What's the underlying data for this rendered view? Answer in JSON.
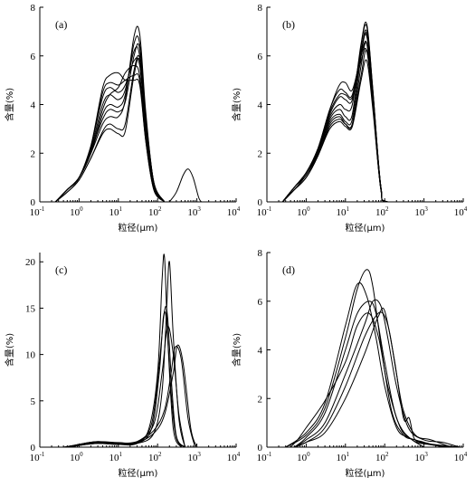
{
  "chart_data": [
    {
      "panel": "(a)",
      "type": "line",
      "xscale": "log",
      "xlim": [
        0.1,
        10000
      ],
      "ylim": [
        0,
        8
      ],
      "xticks": [
        0.1,
        1,
        10,
        100,
        1000,
        10000
      ],
      "xtick_exponents": [
        "-1",
        "0",
        "1",
        "2",
        "3",
        "4"
      ],
      "yticks": [
        "0",
        "2",
        "4",
        "6",
        "8"
      ],
      "xlabel": "粒径(μm)",
      "ylabel": "含量(%)",
      "series": [
        {
          "x": [
            0.25,
            0.5,
            1,
            2,
            4,
            6,
            10,
            15,
            25,
            35,
            50,
            80,
            150
          ],
          "y": [
            0,
            0.5,
            1.0,
            2.3,
            4.7,
            5.2,
            5.3,
            5.0,
            5.0,
            4.8,
            2.5,
            0.5,
            0
          ]
        },
        {
          "x": [
            0.25,
            0.5,
            1,
            2,
            4,
            6,
            10,
            15,
            25,
            35,
            50,
            80,
            150
          ],
          "y": [
            0,
            0.5,
            1.0,
            2.3,
            4.5,
            4.9,
            4.8,
            5.0,
            5.2,
            5.0,
            2.5,
            0.5,
            0
          ]
        },
        {
          "x": [
            0.25,
            0.5,
            1,
            2,
            4,
            6,
            10,
            15,
            25,
            35,
            50,
            80,
            150
          ],
          "y": [
            0,
            0.5,
            1.0,
            2.3,
            4.3,
            4.7,
            4.5,
            4.8,
            5.8,
            5.6,
            3.0,
            0.6,
            0
          ]
        },
        {
          "x": [
            0.25,
            0.5,
            1,
            2,
            4,
            6,
            10,
            15,
            25,
            35,
            50,
            80,
            150
          ],
          "y": [
            0,
            0.5,
            1.0,
            2.2,
            4.0,
            4.4,
            4.2,
            4.6,
            6.2,
            6.0,
            3.2,
            0.7,
            0
          ]
        },
        {
          "x": [
            0.25,
            0.5,
            1,
            2,
            4,
            6,
            10,
            15,
            25,
            35,
            50,
            80,
            150
          ],
          "y": [
            0,
            0.5,
            1.0,
            2.0,
            3.6,
            4.0,
            3.9,
            4.4,
            6.5,
            6.5,
            3.5,
            0.8,
            0
          ]
        },
        {
          "x": [
            0.25,
            0.5,
            1,
            2,
            4,
            6,
            10,
            15,
            25,
            35,
            50,
            80,
            150
          ],
          "y": [
            0,
            0.5,
            1.0,
            2.0,
            3.2,
            3.5,
            3.5,
            4.2,
            6.8,
            6.9,
            3.7,
            0.8,
            0
          ]
        },
        {
          "x": [
            0.25,
            0.5,
            1,
            2,
            4,
            6,
            10,
            15,
            25,
            35,
            50,
            80,
            150
          ],
          "y": [
            0,
            0.4,
            0.9,
            1.8,
            2.9,
            3.2,
            3.0,
            3.2,
            5.4,
            5.9,
            3.5,
            0.8,
            0
          ]
        },
        {
          "x": [
            0.25,
            0.5,
            1,
            2,
            4,
            6,
            10,
            15,
            25,
            35,
            50,
            80,
            150
          ],
          "y": [
            0,
            0.4,
            0.9,
            1.8,
            2.8,
            3.0,
            2.8,
            2.9,
            5.2,
            5.8,
            3.4,
            0.8,
            0
          ]
        },
        {
          "x": [
            0.25,
            0.5,
            1,
            2,
            4,
            6,
            10,
            15,
            25,
            35,
            50,
            80,
            150
          ],
          "y": [
            0,
            0.5,
            1.0,
            2.1,
            3.8,
            4.4,
            4.7,
            5.3,
            5.6,
            5.2,
            2.8,
            0.6,
            0
          ]
        },
        {
          "x": [
            0.25,
            0.5,
            1,
            2,
            4,
            6,
            10,
            15,
            25,
            35,
            50,
            80,
            150
          ],
          "y": [
            0,
            0.5,
            1.0,
            2.1,
            3.4,
            3.8,
            3.7,
            4.1,
            6.0,
            6.3,
            3.3,
            0.7,
            0
          ]
        },
        {
          "x": [
            200,
            300,
            450,
            600,
            800,
            1100,
            1300
          ],
          "y": [
            0,
            0.4,
            1.1,
            1.35,
            1.0,
            0.2,
            0
          ]
        }
      ]
    },
    {
      "panel": "(b)",
      "type": "line",
      "xscale": "log",
      "xlim": [
        0.1,
        10000
      ],
      "ylim": [
        0,
        8
      ],
      "xticks": [
        0.1,
        1,
        10,
        100,
        1000,
        10000
      ],
      "xtick_exponents": [
        "-1",
        "0",
        "1",
        "2",
        "3",
        "4"
      ],
      "yticks": [
        "0",
        "2",
        "4",
        "6",
        "8"
      ],
      "xlabel": "粒径(μm)",
      "ylabel": "含量(%)",
      "series": [
        {
          "x": [
            0.25,
            0.5,
            1,
            2,
            4,
            7,
            10,
            15,
            25,
            35,
            50,
            80,
            120,
            2000
          ],
          "y": [
            0,
            0.6,
            1.2,
            2.2,
            3.8,
            4.8,
            4.9,
            4.6,
            6.0,
            6.5,
            4.0,
            0.5,
            0,
            0
          ]
        },
        {
          "x": [
            0.25,
            0.5,
            1,
            2,
            4,
            7,
            10,
            15,
            25,
            35,
            50,
            80,
            120,
            2000
          ],
          "y": [
            0,
            0.6,
            1.2,
            2.2,
            3.8,
            4.6,
            4.5,
            4.4,
            6.2,
            6.8,
            4.3,
            0.6,
            0,
            0
          ]
        },
        {
          "x": [
            0.25,
            0.5,
            1,
            2,
            4,
            7,
            10,
            15,
            25,
            35,
            50,
            80,
            120,
            2000
          ],
          "y": [
            0,
            0.6,
            1.2,
            2.1,
            3.6,
            4.3,
            4.2,
            4.2,
            6.2,
            7.0,
            4.5,
            0.6,
            0,
            0
          ]
        },
        {
          "x": [
            0.25,
            0.5,
            1,
            2,
            4,
            7,
            10,
            15,
            25,
            35,
            50,
            80,
            120,
            2000
          ],
          "y": [
            0,
            0.6,
            1.1,
            2.1,
            3.5,
            4.0,
            3.8,
            4.0,
            6.5,
            7.3,
            4.6,
            0.6,
            0,
            0
          ]
        },
        {
          "x": [
            0.25,
            0.5,
            1,
            2,
            4,
            7,
            10,
            15,
            25,
            35,
            50,
            80,
            120,
            2000
          ],
          "y": [
            0,
            0.6,
            1.1,
            2.0,
            3.4,
            3.8,
            3.5,
            3.6,
            6.4,
            7.2,
            4.6,
            0.6,
            0,
            0
          ]
        },
        {
          "x": [
            0.25,
            0.5,
            1,
            2,
            4,
            7,
            10,
            15,
            25,
            35,
            50,
            80,
            120,
            2000
          ],
          "y": [
            0,
            0.5,
            1.1,
            2.0,
            3.3,
            3.6,
            3.3,
            3.4,
            6.0,
            6.9,
            4.4,
            0.6,
            0,
            0
          ]
        },
        {
          "x": [
            0.25,
            0.5,
            1,
            2,
            4,
            7,
            10,
            15,
            25,
            35,
            50,
            80,
            120,
            2000
          ],
          "y": [
            0,
            0.5,
            1.0,
            1.9,
            3.2,
            3.5,
            3.2,
            3.2,
            5.6,
            6.5,
            4.2,
            0.6,
            0,
            0
          ]
        },
        {
          "x": [
            0.25,
            0.5,
            1,
            2,
            4,
            7,
            10,
            15,
            25,
            35,
            50,
            80,
            120,
            2000
          ],
          "y": [
            0,
            0.5,
            1.0,
            1.9,
            3.1,
            3.4,
            3.2,
            3.2,
            5.2,
            6.2,
            4.0,
            0.5,
            0,
            0
          ]
        },
        {
          "x": [
            0.25,
            0.5,
            1,
            2,
            4,
            7,
            10,
            15,
            25,
            35,
            50,
            80,
            120,
            2000
          ],
          "y": [
            0,
            0.5,
            1.0,
            1.9,
            3.0,
            3.3,
            3.1,
            3.1,
            5.0,
            5.8,
            3.8,
            0.5,
            0,
            0
          ]
        },
        {
          "x": [
            0.25,
            0.5,
            1,
            2,
            4,
            7,
            10,
            15,
            25,
            35,
            50,
            80,
            120,
            2000
          ],
          "y": [
            0,
            0.6,
            1.2,
            2.2,
            3.7,
            4.4,
            4.4,
            4.3,
            5.8,
            6.2,
            4.0,
            0.5,
            0,
            0
          ]
        }
      ]
    },
    {
      "panel": "(c)",
      "type": "line",
      "xscale": "log",
      "xlim": [
        0.1,
        10000
      ],
      "ylim": [
        0,
        21
      ],
      "xticks": [
        0.1,
        1,
        10,
        100,
        1000,
        10000
      ],
      "xtick_exponents": [
        "-1",
        "0",
        "1",
        "2",
        "3",
        "4"
      ],
      "yticks": [
        "0",
        "5",
        "10",
        "15",
        "20"
      ],
      "xlabel": "粒径(μm)",
      "ylabel": "含量(%)",
      "series": [
        {
          "x": [
            0.4,
            1,
            3,
            10,
            30,
            70,
            110,
            140,
            170,
            220,
            300,
            500
          ],
          "y": [
            0,
            0.2,
            0.5,
            0.3,
            0.4,
            2.0,
            8.0,
            14.0,
            13.5,
            6.0,
            1.0,
            0
          ]
        },
        {
          "x": [
            0.4,
            1,
            3,
            10,
            30,
            70,
            110,
            150,
            180,
            230,
            300,
            500
          ],
          "y": [
            0,
            0.3,
            0.6,
            0.4,
            0.5,
            2.5,
            9.0,
            14.7,
            14.0,
            6.5,
            1.2,
            0
          ]
        },
        {
          "x": [
            0.5,
            1,
            3,
            10,
            30,
            60,
            100,
            130,
            150,
            180,
            250,
            400
          ],
          "y": [
            0,
            0.3,
            0.6,
            0.4,
            0.5,
            2.0,
            8.0,
            18.0,
            20.5,
            12.0,
            2.0,
            0
          ]
        },
        {
          "x": [
            0.5,
            1,
            3,
            10,
            30,
            80,
            130,
            170,
            200,
            250,
            350,
            500
          ],
          "y": [
            0,
            0.2,
            0.4,
            0.3,
            0.4,
            1.5,
            6.0,
            15.0,
            20.0,
            12.0,
            3.0,
            0
          ]
        },
        {
          "x": [
            0.5,
            1,
            3,
            10,
            30,
            80,
            150,
            220,
            280,
            400,
            600,
            900
          ],
          "y": [
            0,
            0.2,
            0.5,
            0.4,
            0.6,
            1.8,
            4.0,
            8.0,
            10.8,
            9.5,
            3.0,
            0
          ]
        },
        {
          "x": [
            0.5,
            1,
            3,
            10,
            30,
            80,
            150,
            250,
            320,
            450,
            700,
            1000
          ],
          "y": [
            0,
            0.2,
            0.4,
            0.3,
            0.5,
            1.5,
            3.5,
            8.0,
            11.0,
            9.0,
            2.0,
            0
          ]
        },
        {
          "x": [
            0.5,
            1,
            3,
            10,
            30,
            80,
            130,
            180,
            250,
            350,
            500
          ],
          "y": [
            0,
            0.3,
            0.6,
            0.5,
            0.6,
            2.5,
            8.0,
            13.0,
            10.0,
            3.5,
            0
          ]
        }
      ]
    },
    {
      "panel": "(d)",
      "type": "line",
      "xscale": "log",
      "xlim": [
        0.1,
        10000
      ],
      "ylim": [
        0,
        8
      ],
      "xticks": [
        0.1,
        1,
        10,
        100,
        1000,
        10000
      ],
      "xtick_exponents": [
        "-1",
        "0",
        "1",
        "2",
        "3",
        "4"
      ],
      "yticks": [
        "0",
        "2",
        "4",
        "6",
        "8"
      ],
      "xlabel": "粒径(μm)",
      "ylabel": "含量(%)",
      "series": [
        {
          "x": [
            0.3,
            1,
            3,
            10,
            20,
            35,
            50,
            80,
            150,
            300,
            600,
            1500,
            5000
          ],
          "y": [
            0,
            0.5,
            1.6,
            4.5,
            6.5,
            7.3,
            6.6,
            4.2,
            1.5,
            0.5,
            0.3,
            0.1,
            0
          ]
        },
        {
          "x": [
            0.3,
            1,
            3,
            10,
            20,
            35,
            60,
            100,
            200,
            400,
            1000,
            3000
          ],
          "y": [
            0,
            0.6,
            1.8,
            5.0,
            6.7,
            6.2,
            4.5,
            2.5,
            0.8,
            0.4,
            0.2,
            0
          ]
        },
        {
          "x": [
            0.5,
            1,
            3,
            10,
            20,
            40,
            60,
            100,
            200,
            500,
            1500,
            5000
          ],
          "y": [
            0,
            0.4,
            1.4,
            4.0,
            5.5,
            6.0,
            5.5,
            3.5,
            1.2,
            0.3,
            0.1,
            0
          ]
        },
        {
          "x": [
            0.5,
            1,
            3,
            10,
            30,
            50,
            80,
            120,
            200,
            400,
            1000,
            3000,
            8000
          ],
          "y": [
            0,
            0.3,
            1.0,
            3.0,
            5.0,
            6.0,
            5.8,
            4.5,
            2.5,
            0.8,
            0.3,
            0.2,
            0
          ]
        },
        {
          "x": [
            0.5,
            1,
            3,
            10,
            30,
            60,
            90,
            130,
            200,
            300,
            600,
            1500,
            5000
          ],
          "y": [
            0,
            0.2,
            0.8,
            2.5,
            4.5,
            5.4,
            5.5,
            4.8,
            3.0,
            1.5,
            0.5,
            0.3,
            0
          ]
        },
        {
          "x": [
            0.5,
            1,
            3,
            10,
            30,
            50,
            70,
            100,
            180,
            300,
            420,
            550,
            800,
            2000,
            8000
          ],
          "y": [
            0,
            0.2,
            0.6,
            2.0,
            3.8,
            4.8,
            5.4,
            5.6,
            3.5,
            1.2,
            1.2,
            0.4,
            0.2,
            0.1,
            0
          ]
        },
        {
          "x": [
            0.4,
            0.6,
            1,
            3,
            10,
            20,
            40,
            70,
            120,
            250,
            500,
            1000
          ],
          "y": [
            0,
            0.3,
            0.8,
            1.9,
            3.5,
            5.0,
            5.5,
            4.5,
            2.5,
            0.8,
            0.3,
            0
          ]
        }
      ]
    }
  ]
}
